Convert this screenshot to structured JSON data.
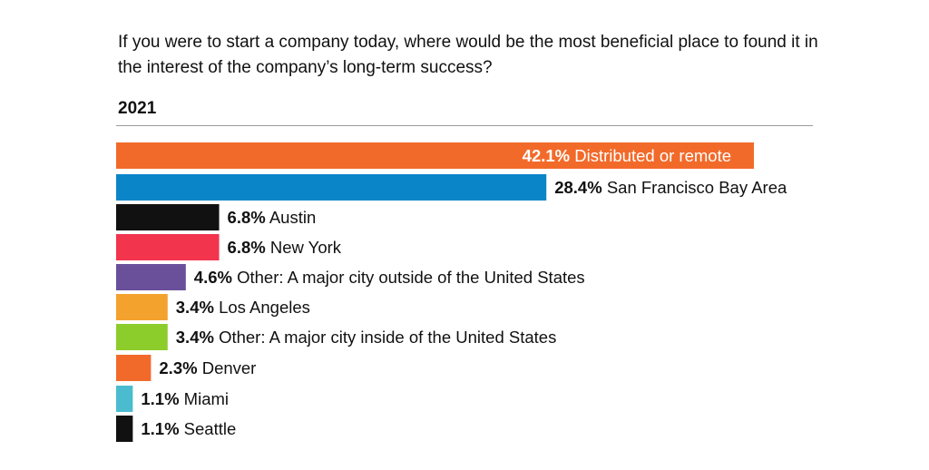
{
  "question": "If you were to start a company today, where would be the most beneficial place to found it in the interest of the company’s long-term success?",
  "year": "2021",
  "chart_data": {
    "type": "bar",
    "orientation": "horizontal",
    "title": "If you were to start a company today, where would be the most beneficial place to found it in the interest of the company’s long-term success?",
    "subtitle": "2021",
    "xlim": [
      0,
      42.1
    ],
    "categories": [
      "Distributed or remote",
      "San Francisco Bay Area",
      "Austin",
      "New York",
      "Other: A major city outside of the United States",
      "Los Angeles",
      "Other: A major city inside of the United States",
      "Denver",
      "Miami",
      "Seattle"
    ],
    "values": [
      42.1,
      28.4,
      6.8,
      6.8,
      4.6,
      3.4,
      3.4,
      2.3,
      1.1,
      1.1
    ],
    "value_labels": [
      "42.1%",
      "28.4%",
      "6.8%",
      "6.8%",
      "4.6%",
      "3.4%",
      "3.4%",
      "2.3%",
      "1.1%",
      "1.1%"
    ],
    "colors": [
      "#f26a2a",
      "#0a86c8",
      "#111111",
      "#f2344d",
      "#6a4f9a",
      "#f4a22e",
      "#8ccd2b",
      "#f26a2a",
      "#4bbccf",
      "#111111"
    ],
    "label_inside_first_bar": true,
    "inside_label_color": "#ffffff",
    "outside_label_color": "#111111"
  }
}
